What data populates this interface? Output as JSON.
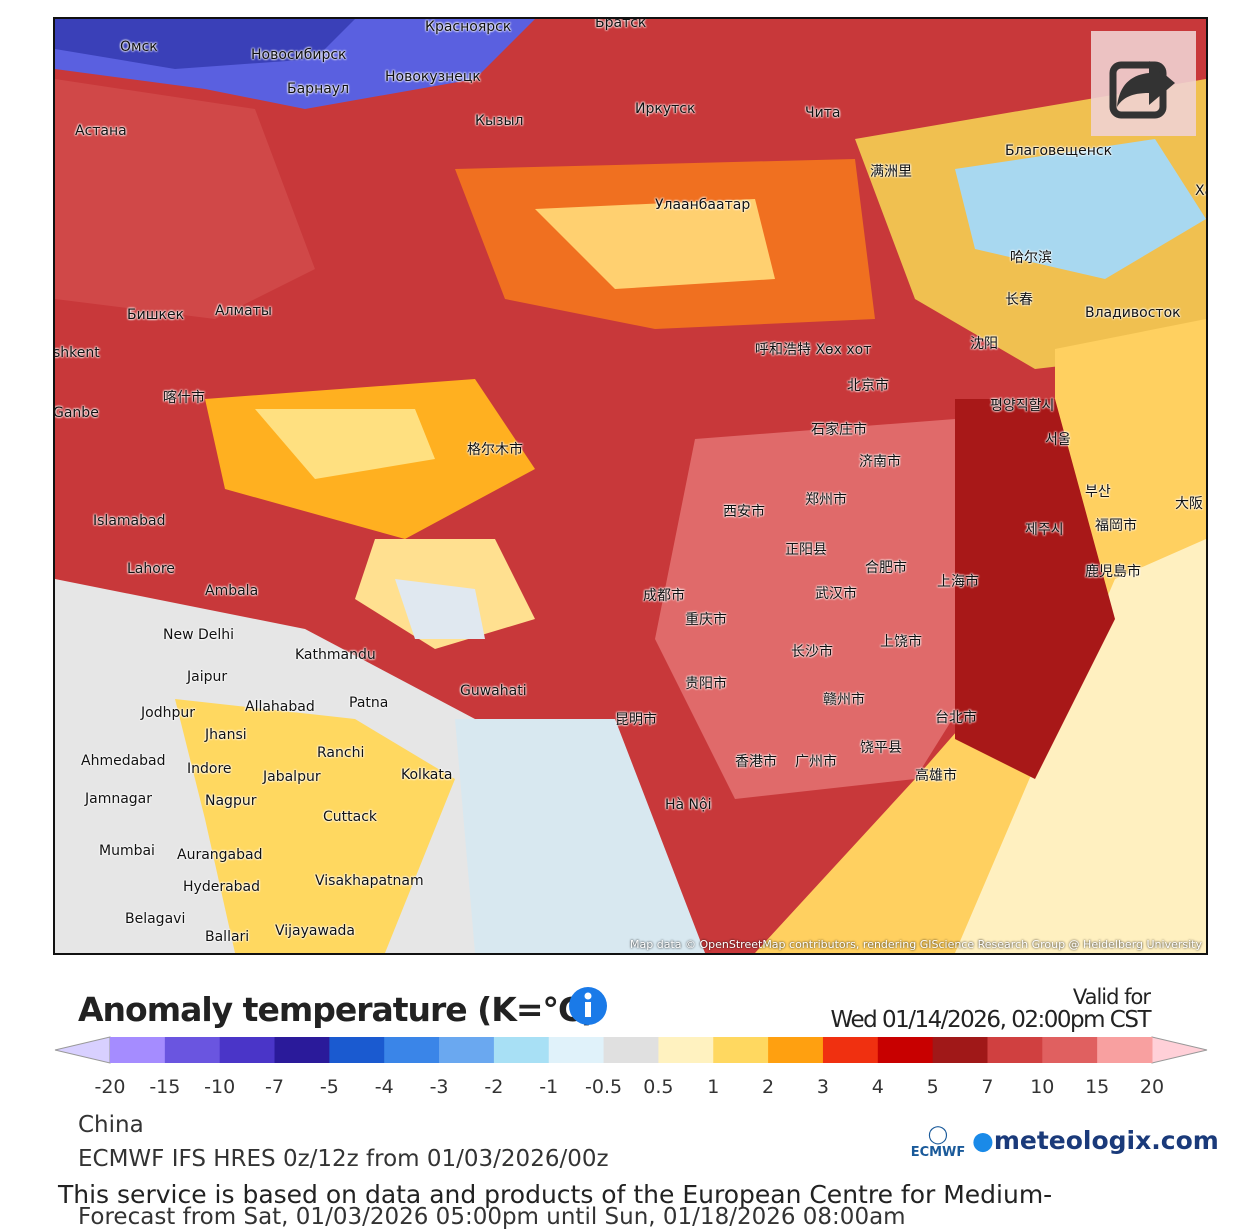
{
  "map": {
    "attribution": "Map data © OpenStreetMap contributors, rendering GIScience Research Group @ Heidelberg University",
    "cities": [
      "Омск",
      "Новосибирск",
      "Красноярск",
      "Братск",
      "Барнаул",
      "Новокузнецк",
      "Астана",
      "Кызыл",
      "Иркутск",
      "Чита",
      "Благовещенск",
      "Хабаро",
      "Улаанбаатар",
      "满洲里",
      "哈尔滨",
      "长春",
      "Владивосток",
      "沈阳",
      "Бишкек",
      "Алматы",
      "shkent",
      "呼和浩特 Хөх хот",
      "北京市",
      "石家庄市",
      "济南市",
      "평양직할시",
      "서울",
      "부산",
      "喀什市",
      "格尔木市",
      "西安市",
      "郑州市",
      "Islamabad",
      "Lahore",
      "Ambala",
      "New Delhi",
      "Kathmandu",
      "成都市",
      "重庆市",
      "武汉市",
      "合肥市",
      "上海市",
      "长沙市",
      "上饶市",
      "Guwahati",
      "Patna",
      "Jaipur",
      "Allahabad",
      "Jodhpur",
      "Jhansi",
      "Ranchi",
      "Ahmedabad",
      "Indore",
      "Jabalpur",
      "Kolkata",
      "贵阳市",
      "昆明市",
      "赣州市",
      "台北市",
      "香港市",
      "广州市",
      "饶平县",
      "高雄市",
      "Hà Nội",
      "Jamnagar",
      "Nagpur",
      "Cuttack",
      "Mumbai",
      "Aurangabad",
      "Hyderabad",
      "Visakhapatnam",
      "Belagavi",
      "Ballari",
      "Vijayawada",
      "Ganbe",
      "福岡市",
      "鹿児島市",
      "제주시",
      "正阳县",
      "大阪"
    ]
  },
  "legend": {
    "title": "Anomaly temperature (K=°C)",
    "valid_label": "Valid for",
    "valid_time": "Wed 01/14/2026, 02:00pm CST",
    "ticks": [
      -20,
      -15,
      -10,
      -7,
      -5,
      -4,
      -3,
      -2,
      -1,
      -0.5,
      0.5,
      1,
      2,
      3,
      4,
      5,
      7,
      10,
      15,
      20
    ],
    "colors": [
      "#a58cff",
      "#6a55e0",
      "#4a35c8",
      "#2a1a9a",
      "#1a5ad0",
      "#3a85e8",
      "#6aa8f0",
      "#a8e0f5",
      "#e0f2fa",
      "#e0e0e0",
      "#fff2c0",
      "#ffd860",
      "#ffa010",
      "#f03010",
      "#c80000",
      "#a01818",
      "#d04040",
      "#e06060",
      "#f8a0a0"
    ],
    "low_color": "#d8d0ff",
    "high_color": "#ffd0d8"
  },
  "info": {
    "region": "China",
    "model": "ECMWF IFS HRES 0z/12z from 01/03/2026/00z",
    "service": "This service is based on data and products of the European Centre for Medium-",
    "forecast": "Forecast from Sat, 01/03/2026 05:00pm until Sun, 01/18/2026 08:00am",
    "ecmwf": "ECMWF",
    "brand": "meteologix.com"
  }
}
